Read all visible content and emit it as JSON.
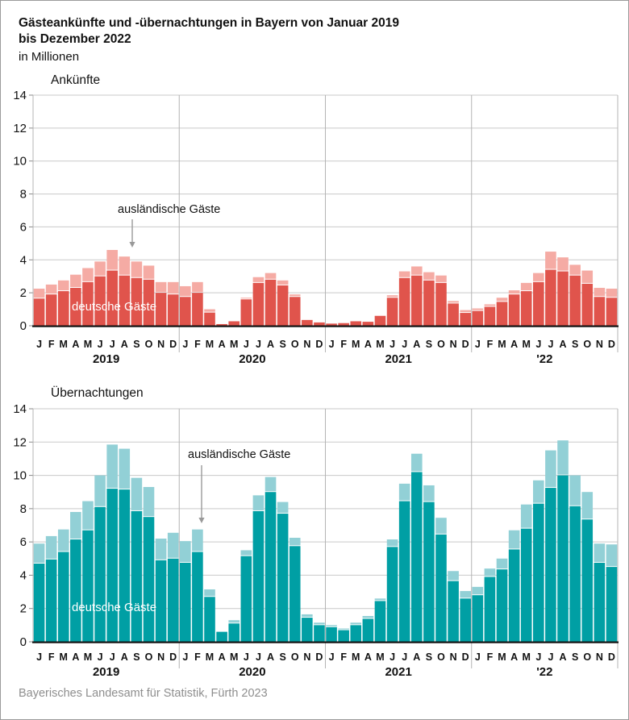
{
  "header": {
    "title_line1": "Gästeankünfte und -übernachtungen in Bayern von Januar 2019",
    "title_line2": "bis Dezember 2022",
    "unit_label": "in Millionen"
  },
  "source": "Bayerisches Landesamt für Statistik, Fürth 2023",
  "colors": {
    "arrivals_domestic": "#e0544c",
    "arrivals_foreign": "#f5aba4",
    "nights_domestic": "#009fa4",
    "nights_foreign": "#92d0d6",
    "gridline": "#c9c9c9",
    "separator": "#b4b4b4",
    "axis": "#1a1a1a",
    "arrow": "#999999",
    "text": "#111111"
  },
  "axis": {
    "yticks": [
      0,
      2,
      4,
      6,
      8,
      10,
      12,
      14
    ],
    "months": [
      "J",
      "F",
      "M",
      "A",
      "M",
      "J",
      "J",
      "A",
      "S",
      "O",
      "N",
      "D"
    ],
    "years": [
      "2019",
      "2020",
      "2021",
      "'22"
    ]
  },
  "chart_data": [
    {
      "type": "bar",
      "stacked": true,
      "title": "Ankünfte",
      "ylabel": "in Millionen",
      "ylim": [
        0,
        14
      ],
      "grid": true,
      "categories_note": "48 monthly bars Jan 2019 - Dec 2022",
      "annotation_foreign": "ausländische Gäste",
      "annotation_domestic": "deutsche Gäste",
      "series": [
        {
          "name": "deutsche Gäste",
          "color": "#e0544c",
          "values": [
            1.65,
            1.9,
            2.1,
            2.3,
            2.65,
            3.0,
            3.35,
            3.05,
            2.9,
            2.8,
            2.0,
            1.9,
            1.75,
            2.0,
            0.8,
            0.1,
            0.27,
            1.6,
            2.6,
            2.8,
            2.45,
            1.75,
            0.35,
            0.2,
            0.13,
            0.16,
            0.27,
            0.24,
            0.6,
            1.7,
            2.9,
            3.05,
            2.75,
            2.6,
            1.35,
            0.78,
            0.9,
            1.15,
            1.45,
            1.9,
            2.1,
            2.65,
            3.4,
            3.3,
            3.05,
            2.55,
            1.75,
            1.7
          ]
        },
        {
          "name": "ausländische Gäste",
          "color": "#f5aba4",
          "values": [
            0.6,
            0.6,
            0.65,
            0.8,
            0.85,
            0.9,
            1.25,
            1.15,
            1.0,
            0.85,
            0.65,
            0.75,
            0.65,
            0.65,
            0.2,
            0.02,
            0.03,
            0.1,
            0.35,
            0.4,
            0.3,
            0.15,
            0.05,
            0.02,
            0.02,
            0.02,
            0.03,
            0.04,
            0.05,
            0.15,
            0.4,
            0.55,
            0.5,
            0.45,
            0.15,
            0.17,
            0.15,
            0.15,
            0.25,
            0.25,
            0.5,
            0.55,
            1.1,
            0.85,
            0.65,
            0.8,
            0.55,
            0.55
          ]
        }
      ]
    },
    {
      "type": "bar",
      "stacked": true,
      "title": "Übernachtungen",
      "ylabel": "in Millionen",
      "ylim": [
        0,
        14
      ],
      "grid": true,
      "categories_note": "48 monthly bars Jan 2019 - Dec 2022",
      "annotation_foreign": "ausländische Gäste",
      "annotation_domestic": "deutsche Gäste",
      "series": [
        {
          "name": "deutsche Gäste",
          "color": "#009fa4",
          "values": [
            4.7,
            4.95,
            5.4,
            6.15,
            6.7,
            8.1,
            9.2,
            9.15,
            7.85,
            7.5,
            4.9,
            5.0,
            4.75,
            5.4,
            2.7,
            0.6,
            1.1,
            5.15,
            7.85,
            9.0,
            7.7,
            5.75,
            1.45,
            1.0,
            0.88,
            0.7,
            1.0,
            1.38,
            2.45,
            5.7,
            8.45,
            10.2,
            8.4,
            6.45,
            3.65,
            2.6,
            2.8,
            3.9,
            4.35,
            5.55,
            6.8,
            8.3,
            9.25,
            10.0,
            8.15,
            7.35,
            4.75,
            4.5
          ]
        },
        {
          "name": "ausländische Gäste",
          "color": "#92d0d6",
          "values": [
            1.2,
            1.4,
            1.35,
            1.65,
            1.75,
            1.9,
            2.65,
            2.45,
            2.0,
            1.8,
            1.3,
            1.55,
            1.3,
            1.35,
            0.45,
            0.05,
            0.2,
            0.35,
            0.95,
            0.9,
            0.7,
            0.5,
            0.2,
            0.15,
            0.12,
            0.1,
            0.15,
            0.17,
            0.15,
            0.45,
            1.05,
            1.1,
            1.0,
            1.0,
            0.6,
            0.45,
            0.5,
            0.5,
            0.65,
            1.15,
            1.45,
            1.4,
            2.25,
            2.1,
            1.85,
            1.65,
            1.15,
            1.35
          ]
        }
      ]
    }
  ]
}
